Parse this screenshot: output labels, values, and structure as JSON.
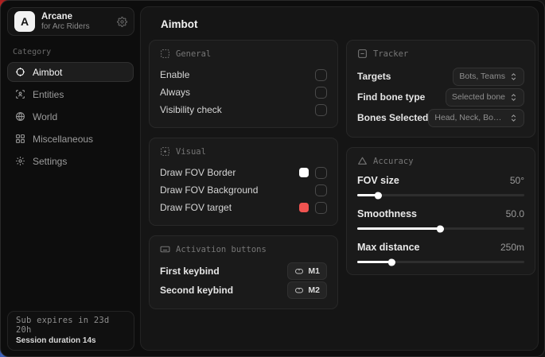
{
  "sidebar": {
    "app_name": "Arcane",
    "app_subtitle": "for Arc Riders",
    "logo_letter": "A",
    "category_label": "Category",
    "items": [
      {
        "label": "Aimbot",
        "icon": "crosshair-icon",
        "active": true
      },
      {
        "label": "Entities",
        "icon": "entities-icon",
        "active": false
      },
      {
        "label": "World",
        "icon": "globe-icon",
        "active": false
      },
      {
        "label": "Miscellaneous",
        "icon": "grid-icon",
        "active": false
      },
      {
        "label": "Settings",
        "icon": "gear-icon",
        "active": false
      }
    ],
    "footer": {
      "subscription": "Sub expires in 23d 20h",
      "session": "Session duration 14s"
    }
  },
  "main": {
    "title": "Aimbot",
    "general": {
      "title": "General",
      "icon": "focus-icon",
      "rows": [
        {
          "label": "Enable",
          "checked": false
        },
        {
          "label": "Always",
          "checked": false
        },
        {
          "label": "Visibility check",
          "checked": false
        }
      ]
    },
    "visual": {
      "title": "Visual",
      "icon": "focus-plus-icon",
      "rows": [
        {
          "label": "Draw FOV Border",
          "swatch": "#ffffff",
          "checked": false
        },
        {
          "label": "Draw FOV Background",
          "checked": false
        },
        {
          "label": "Draw FOV target",
          "swatch": "#ef5350",
          "checked": false
        }
      ]
    },
    "activation": {
      "title": "Activation buttons",
      "icon": "keyboard-icon",
      "rows": [
        {
          "label": "First keybind",
          "key": "M1",
          "key_icon": "mouse-icon"
        },
        {
          "label": "Second keybind",
          "key": "M2",
          "key_icon": "mouse-icon"
        }
      ]
    },
    "tracker": {
      "title": "Tracker",
      "icon": "square-minus-icon",
      "rows": [
        {
          "label": "Targets",
          "value": "Bots, Teams"
        },
        {
          "label": "Find bone type",
          "value": "Selected bone"
        },
        {
          "label": "Bones Selected",
          "value": "Head, Neck, Body, Pe..."
        }
      ]
    },
    "accuracy": {
      "title": "Accuracy",
      "icon": "triangle-icon",
      "rows": [
        {
          "label": "FOV size",
          "value": "50°",
          "percent": 13
        },
        {
          "label": "Smoothness",
          "value": "50.0",
          "percent": 50
        },
        {
          "label": "Max distance",
          "value": "250m",
          "percent": 21
        }
      ]
    }
  },
  "colors": {
    "accent_red": "#ef5350",
    "swatch_white": "#ffffff",
    "card_bg": "#1a1a1a",
    "panel_bg": "#151515"
  }
}
